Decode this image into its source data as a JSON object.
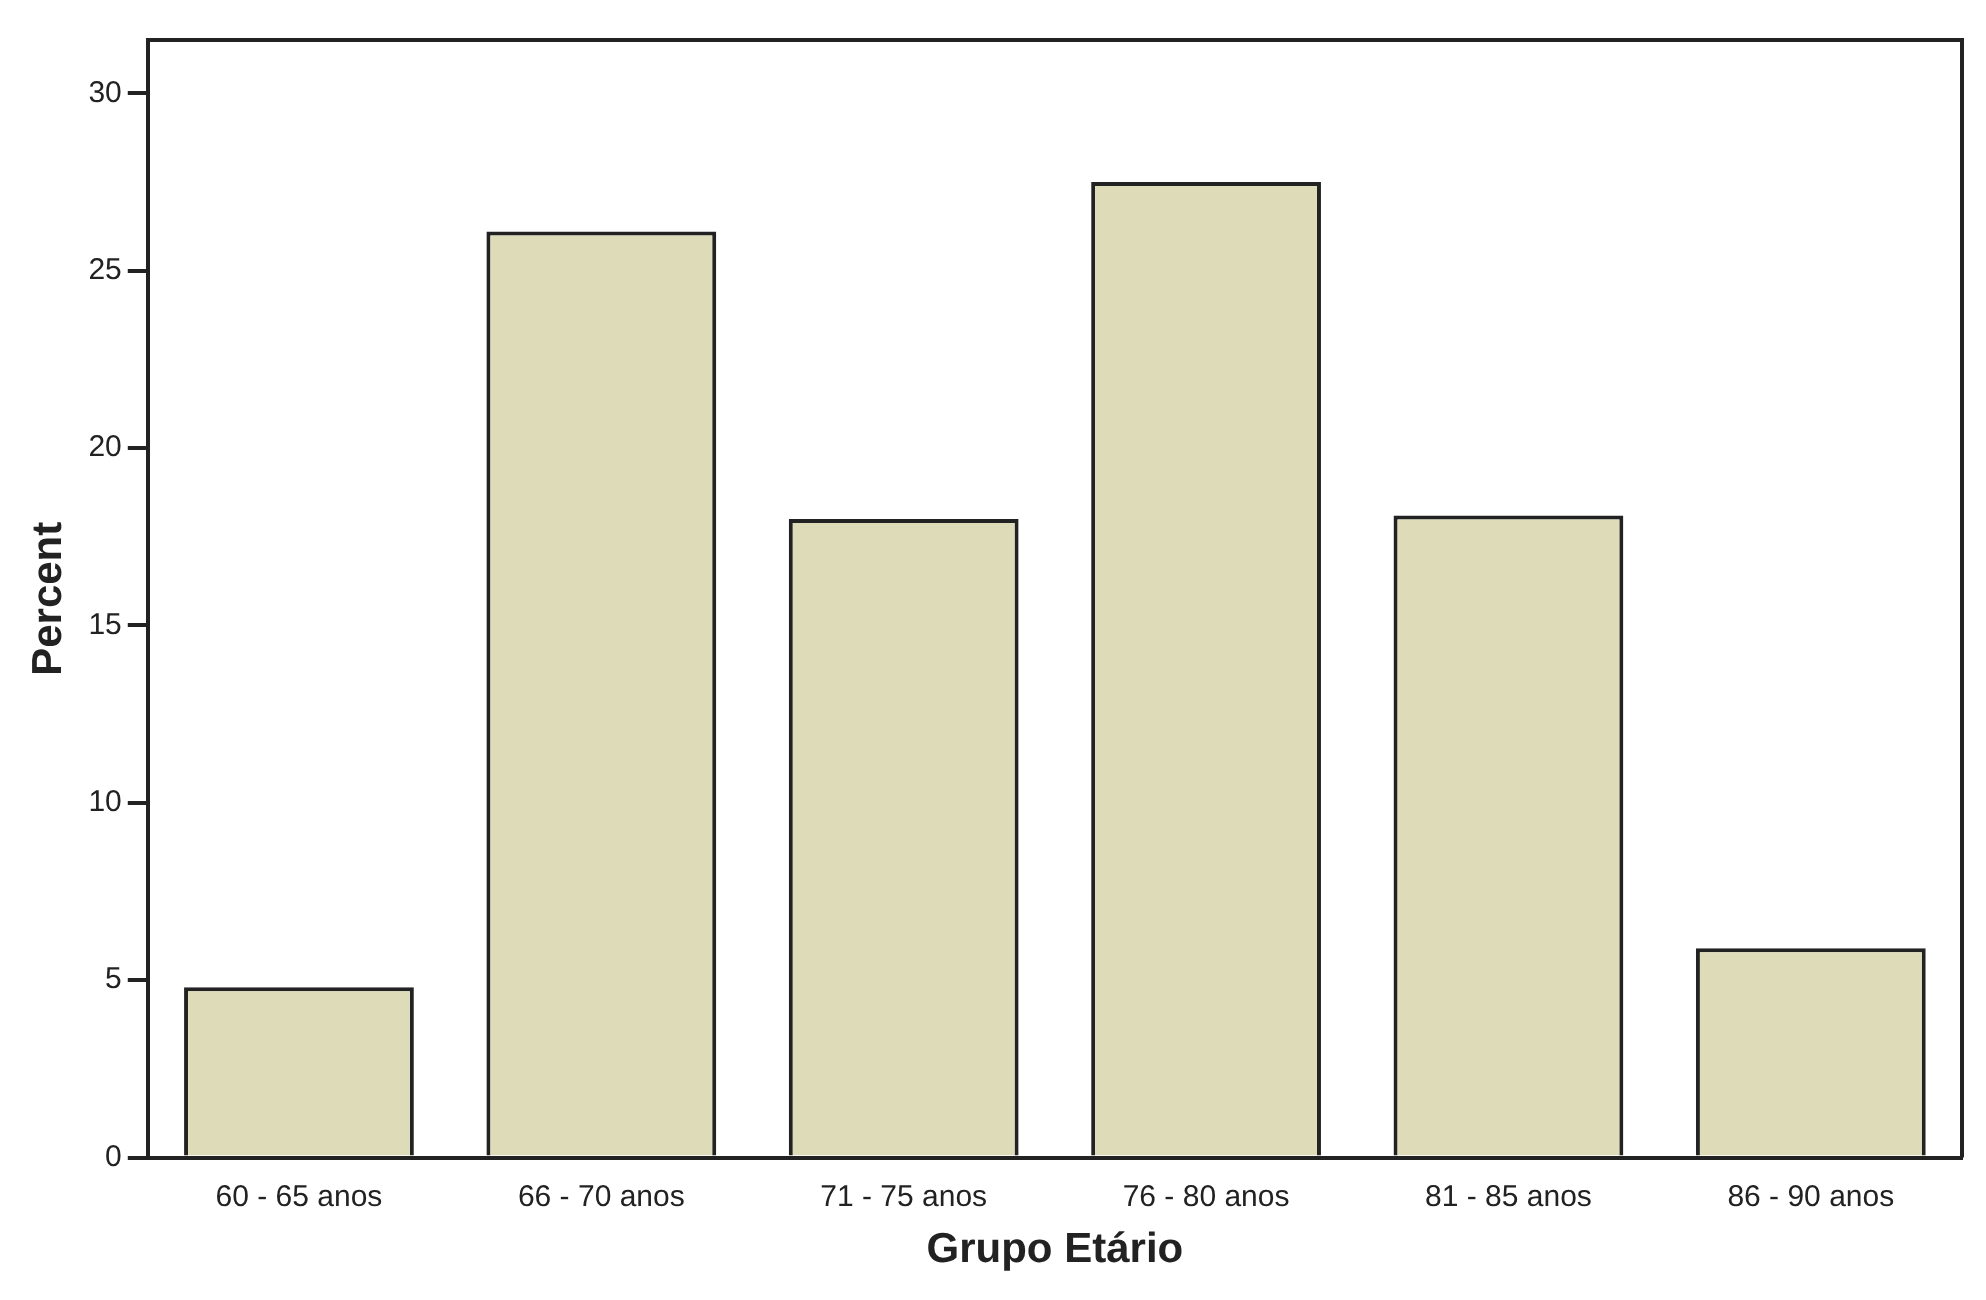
{
  "chart_data": {
    "type": "bar",
    "xlabel": "Grupo Etário",
    "ylabel": "Percent",
    "categories": [
      "60 - 65 anos",
      "66 - 70 anos",
      "71 - 75 anos",
      "76 - 80 anos",
      "81 - 85 anos",
      "86 - 90 anos"
    ],
    "values": [
      4.8,
      26.1,
      18.0,
      27.5,
      18.1,
      5.9
    ],
    "color": "#dedcb8",
    "ylim": [
      0,
      31.5
    ],
    "yticks": [
      0,
      5,
      10,
      15,
      20,
      25,
      30
    ],
    "grid": false
  }
}
